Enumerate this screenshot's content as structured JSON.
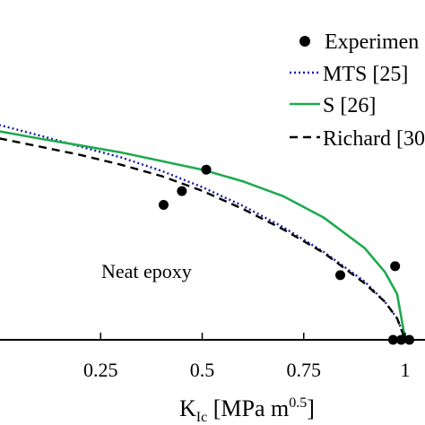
{
  "chart_data": {
    "type": "scatter",
    "xlabel": {
      "main": "K",
      "sub": "Ic",
      "unit": " [MPa m",
      "sup": "0.5",
      "end": "]"
    },
    "x_ticks": [
      0.25,
      0.5,
      0.75,
      1
    ],
    "x_tick_labels": [
      "0.25",
      "0.5",
      "0.75",
      "1"
    ],
    "xlim": [
      0,
      1.01
    ],
    "ylim": [
      0,
      1.11
    ],
    "annotation": "Neat epoxy",
    "legend_position": "top-right",
    "series": [
      {
        "name": "Experimen",
        "kind": "points",
        "color": "#000000",
        "x": [
          0.405,
          0.45,
          0.51,
          0.84,
          0.975,
          0.97,
          0.99,
          1.01
        ],
        "y": [
          0.44,
          0.485,
          0.555,
          0.211,
          0.24,
          0.0,
          0.0,
          0.0
        ]
      },
      {
        "name": "MTS [25]",
        "kind": "line",
        "style": "dotted",
        "color": "#1a1aa6",
        "x": [
          0.0,
          0.1,
          0.2,
          0.3,
          0.4,
          0.5,
          0.6,
          0.7,
          0.8,
          0.9,
          0.95,
          0.98,
          1.0
        ],
        "y": [
          0.701,
          0.666,
          0.63,
          0.595,
          0.551,
          0.498,
          0.437,
          0.367,
          0.286,
          0.19,
          0.124,
          0.07,
          0.0
        ]
      },
      {
        "name": "S [26]",
        "kind": "line",
        "style": "solid",
        "color": "#1faa4f",
        "x": [
          0.0,
          0.1,
          0.2,
          0.3,
          0.4,
          0.5,
          0.6,
          0.7,
          0.8,
          0.9,
          0.95,
          0.98,
          1.0
        ],
        "y": [
          0.68,
          0.656,
          0.634,
          0.611,
          0.583,
          0.555,
          0.517,
          0.468,
          0.398,
          0.299,
          0.221,
          0.149,
          0.0
        ]
      },
      {
        "name": "Richard [30",
        "kind": "line",
        "style": "dashed",
        "color": "#000000",
        "x": [
          0.0,
          0.1,
          0.2,
          0.3,
          0.4,
          0.5,
          0.6,
          0.7,
          0.8,
          0.9,
          0.95,
          0.98,
          1.0
        ],
        "y": [
          0.657,
          0.63,
          0.603,
          0.571,
          0.534,
          0.486,
          0.427,
          0.36,
          0.283,
          0.184,
          0.124,
          0.07,
          0.0
        ]
      }
    ]
  }
}
